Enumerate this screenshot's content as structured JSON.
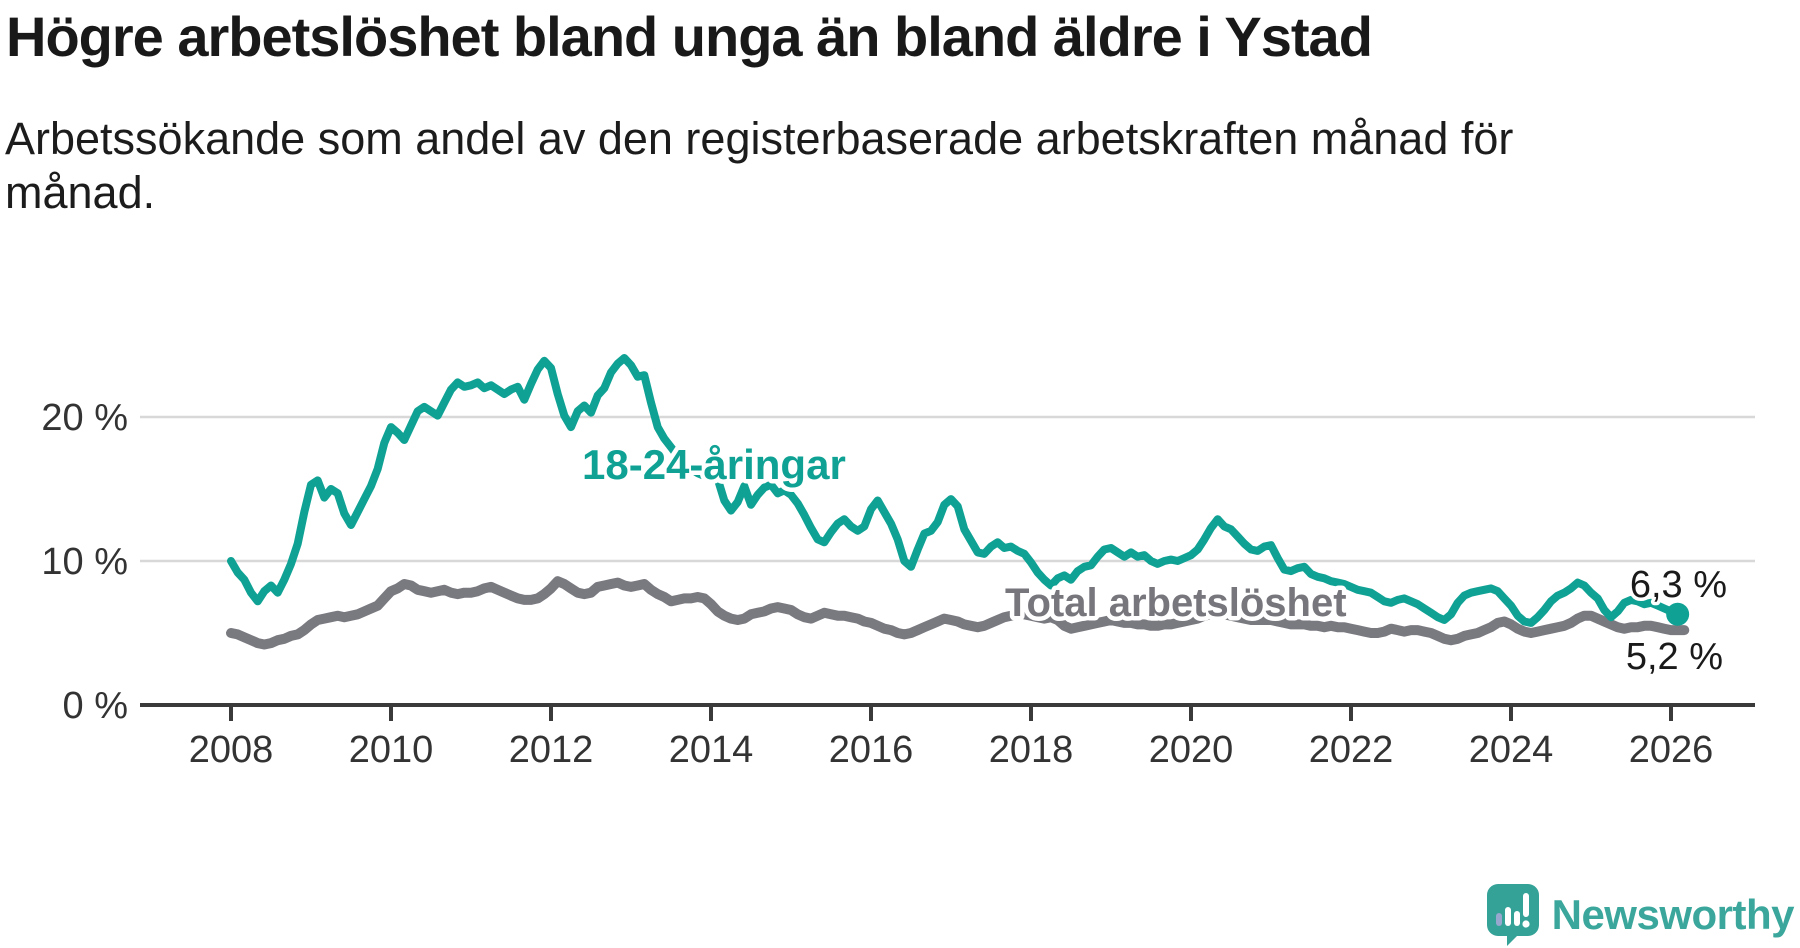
{
  "header": {
    "title": "Högre arbetslöshet bland unga än bland äldre i Ystad",
    "subtitle_line1": "Arbetssökande som andel av den registerbaserade arbetskraften månad för",
    "subtitle_line2": "månad."
  },
  "footer": {
    "brand": "Newsworthy"
  },
  "colors": {
    "young_line": "#0FA294",
    "total_line": "#797980",
    "total_label": "#76767C",
    "value_label": "#1A1A1A",
    "grid": "#D8D8D8",
    "axis": "#3A3A3A",
    "logo": "#3BA79C"
  },
  "chart_data": {
    "type": "line",
    "title": "Högre arbetslöshet bland unga än bland äldre i Ystad",
    "subtitle": "Arbetssökande som andel av den registerbaserade arbetskraften månad för månad.",
    "xlabel": "",
    "ylabel": "",
    "y_unit": "%",
    "grid": "horizontal",
    "legend_position": "inline-labels",
    "x_range": [
      2008,
      2026.2
    ],
    "ylim": [
      0,
      26
    ],
    "x_ticks": [
      2008,
      2010,
      2012,
      2014,
      2016,
      2018,
      2020,
      2022,
      2024,
      2026
    ],
    "y_ticks": [
      {
        "value": 0,
        "label": "0 %"
      },
      {
        "value": 10,
        "label": "10 %"
      },
      {
        "value": 20,
        "label": "20 %"
      }
    ],
    "series": [
      {
        "name": "18-24-åringar",
        "label": "18-24-åringar",
        "end_label": "6,3 %",
        "end_value": 6.3,
        "color": "#0FA294",
        "start_year": 2008,
        "frequency": "monthly",
        "values_monthly": [
          10.0,
          9.2,
          8.7,
          7.8,
          7.2,
          7.9,
          8.3,
          7.8,
          8.7,
          9.8,
          11.2,
          13.4,
          15.3,
          15.6,
          14.4,
          15.0,
          14.7,
          13.3,
          12.5,
          13.4,
          14.3,
          15.2,
          16.4,
          18.2,
          19.3,
          18.9,
          18.4,
          19.4,
          20.4,
          20.7,
          20.4,
          20.1,
          21.0,
          21.9,
          22.4,
          22.1,
          22.2,
          22.4,
          22.0,
          22.2,
          21.9,
          21.6,
          21.9,
          22.1,
          21.2,
          22.3,
          23.3,
          23.9,
          23.4,
          21.6,
          20.1,
          19.3,
          20.4,
          20.8,
          20.3,
          21.5,
          22.0,
          23.1,
          23.7,
          24.1,
          23.6,
          22.8,
          22.9,
          21.0,
          19.3,
          18.5,
          17.9,
          17.3,
          16.8,
          16.4,
          16.1,
          15.9,
          15.8,
          15.7,
          14.2,
          13.5,
          14.1,
          15.2,
          13.9,
          14.6,
          15.1,
          15.3,
          14.7,
          14.9,
          14.6,
          14.0,
          13.2,
          12.3,
          11.5,
          11.3,
          12.0,
          12.6,
          12.9,
          12.4,
          12.1,
          12.4,
          13.6,
          14.2,
          13.4,
          12.6,
          11.5,
          10.0,
          9.6,
          10.8,
          11.9,
          12.1,
          12.7,
          13.9,
          14.3,
          13.8,
          12.2,
          11.4,
          10.6,
          10.5,
          11.0,
          11.3,
          10.9,
          11.0,
          10.7,
          10.5,
          9.9,
          9.2,
          8.7,
          8.3,
          8.8,
          9.0,
          8.7,
          9.3,
          9.6,
          9.7,
          10.3,
          10.8,
          10.9,
          10.6,
          10.3,
          10.6,
          10.3,
          10.4,
          10.0,
          9.8,
          10.0,
          10.1,
          10.0,
          10.2,
          10.4,
          10.8,
          11.5,
          12.3,
          12.9,
          12.4,
          12.2,
          11.7,
          11.2,
          10.8,
          10.7,
          11.0,
          11.1,
          10.2,
          9.4,
          9.3,
          9.5,
          9.6,
          9.1,
          8.9,
          8.8,
          8.6,
          8.5,
          8.4,
          8.2,
          8.0,
          7.9,
          7.8,
          7.5,
          7.2,
          7.1,
          7.3,
          7.4,
          7.2,
          7.0,
          6.7,
          6.4,
          6.1,
          5.9,
          6.3,
          7.1,
          7.6,
          7.8,
          7.9,
          8.0,
          8.1,
          7.9,
          7.4,
          6.9,
          6.2,
          5.8,
          5.7,
          6.1,
          6.6,
          7.2,
          7.6,
          7.8,
          8.1,
          8.5,
          8.3,
          7.8,
          7.4,
          6.6,
          6.1,
          6.5,
          7.1,
          7.3,
          7.2,
          7.0,
          7.1,
          6.9,
          6.7,
          6.5,
          6.3
        ]
      },
      {
        "name": "Total arbetslöshet",
        "label": "Total arbetslöshet",
        "end_label": "5,2 %",
        "end_value": 5.2,
        "color": "#797980",
        "start_year": 2008,
        "frequency": "monthly",
        "values_monthly": [
          5.0,
          4.9,
          4.7,
          4.5,
          4.3,
          4.2,
          4.3,
          4.5,
          4.6,
          4.8,
          4.9,
          5.2,
          5.6,
          5.9,
          6.0,
          6.1,
          6.2,
          6.1,
          6.2,
          6.3,
          6.5,
          6.7,
          6.9,
          7.4,
          7.9,
          8.1,
          8.4,
          8.3,
          8.0,
          7.9,
          7.8,
          7.9,
          8.0,
          7.8,
          7.7,
          7.8,
          7.8,
          7.9,
          8.1,
          8.2,
          8.0,
          7.8,
          7.6,
          7.4,
          7.3,
          7.3,
          7.4,
          7.7,
          8.1,
          8.6,
          8.4,
          8.1,
          7.8,
          7.7,
          7.8,
          8.2,
          8.3,
          8.4,
          8.5,
          8.3,
          8.2,
          8.3,
          8.4,
          8.0,
          7.7,
          7.5,
          7.2,
          7.3,
          7.4,
          7.4,
          7.5,
          7.4,
          7.0,
          6.5,
          6.2,
          6.0,
          5.9,
          6.0,
          6.3,
          6.4,
          6.5,
          6.7,
          6.8,
          6.7,
          6.6,
          6.3,
          6.1,
          6.0,
          6.2,
          6.4,
          6.3,
          6.2,
          6.2,
          6.1,
          6.0,
          5.8,
          5.7,
          5.5,
          5.3,
          5.2,
          5.0,
          4.9,
          5.0,
          5.2,
          5.4,
          5.6,
          5.8,
          6.0,
          5.9,
          5.8,
          5.6,
          5.5,
          5.4,
          5.5,
          5.7,
          5.9,
          6.1,
          6.2,
          6.3,
          6.3,
          6.2,
          6.1,
          6.0,
          6.1,
          5.9,
          5.5,
          5.3,
          5.4,
          5.5,
          5.6,
          5.7,
          5.8,
          5.9,
          5.8,
          5.7,
          5.7,
          5.6,
          5.6,
          5.5,
          5.5,
          5.6,
          5.6,
          5.7,
          5.8,
          5.9,
          6.0,
          6.2,
          6.3,
          6.4,
          6.3,
          6.2,
          6.1,
          6.0,
          5.9,
          5.9,
          5.9,
          5.9,
          5.8,
          5.7,
          5.6,
          5.6,
          5.6,
          5.5,
          5.5,
          5.4,
          5.5,
          5.4,
          5.4,
          5.3,
          5.2,
          5.1,
          5.0,
          5.0,
          5.1,
          5.3,
          5.2,
          5.1,
          5.2,
          5.2,
          5.1,
          5.0,
          4.8,
          4.6,
          4.5,
          4.6,
          4.8,
          4.9,
          5.0,
          5.2,
          5.4,
          5.7,
          5.8,
          5.6,
          5.3,
          5.1,
          5.0,
          5.1,
          5.2,
          5.3,
          5.4,
          5.5,
          5.7,
          6.0,
          6.2,
          6.2,
          6.0,
          5.8,
          5.6,
          5.4,
          5.3,
          5.4,
          5.4,
          5.5,
          5.5,
          5.4,
          5.3,
          5.2,
          5.2,
          5.2
        ]
      }
    ]
  }
}
